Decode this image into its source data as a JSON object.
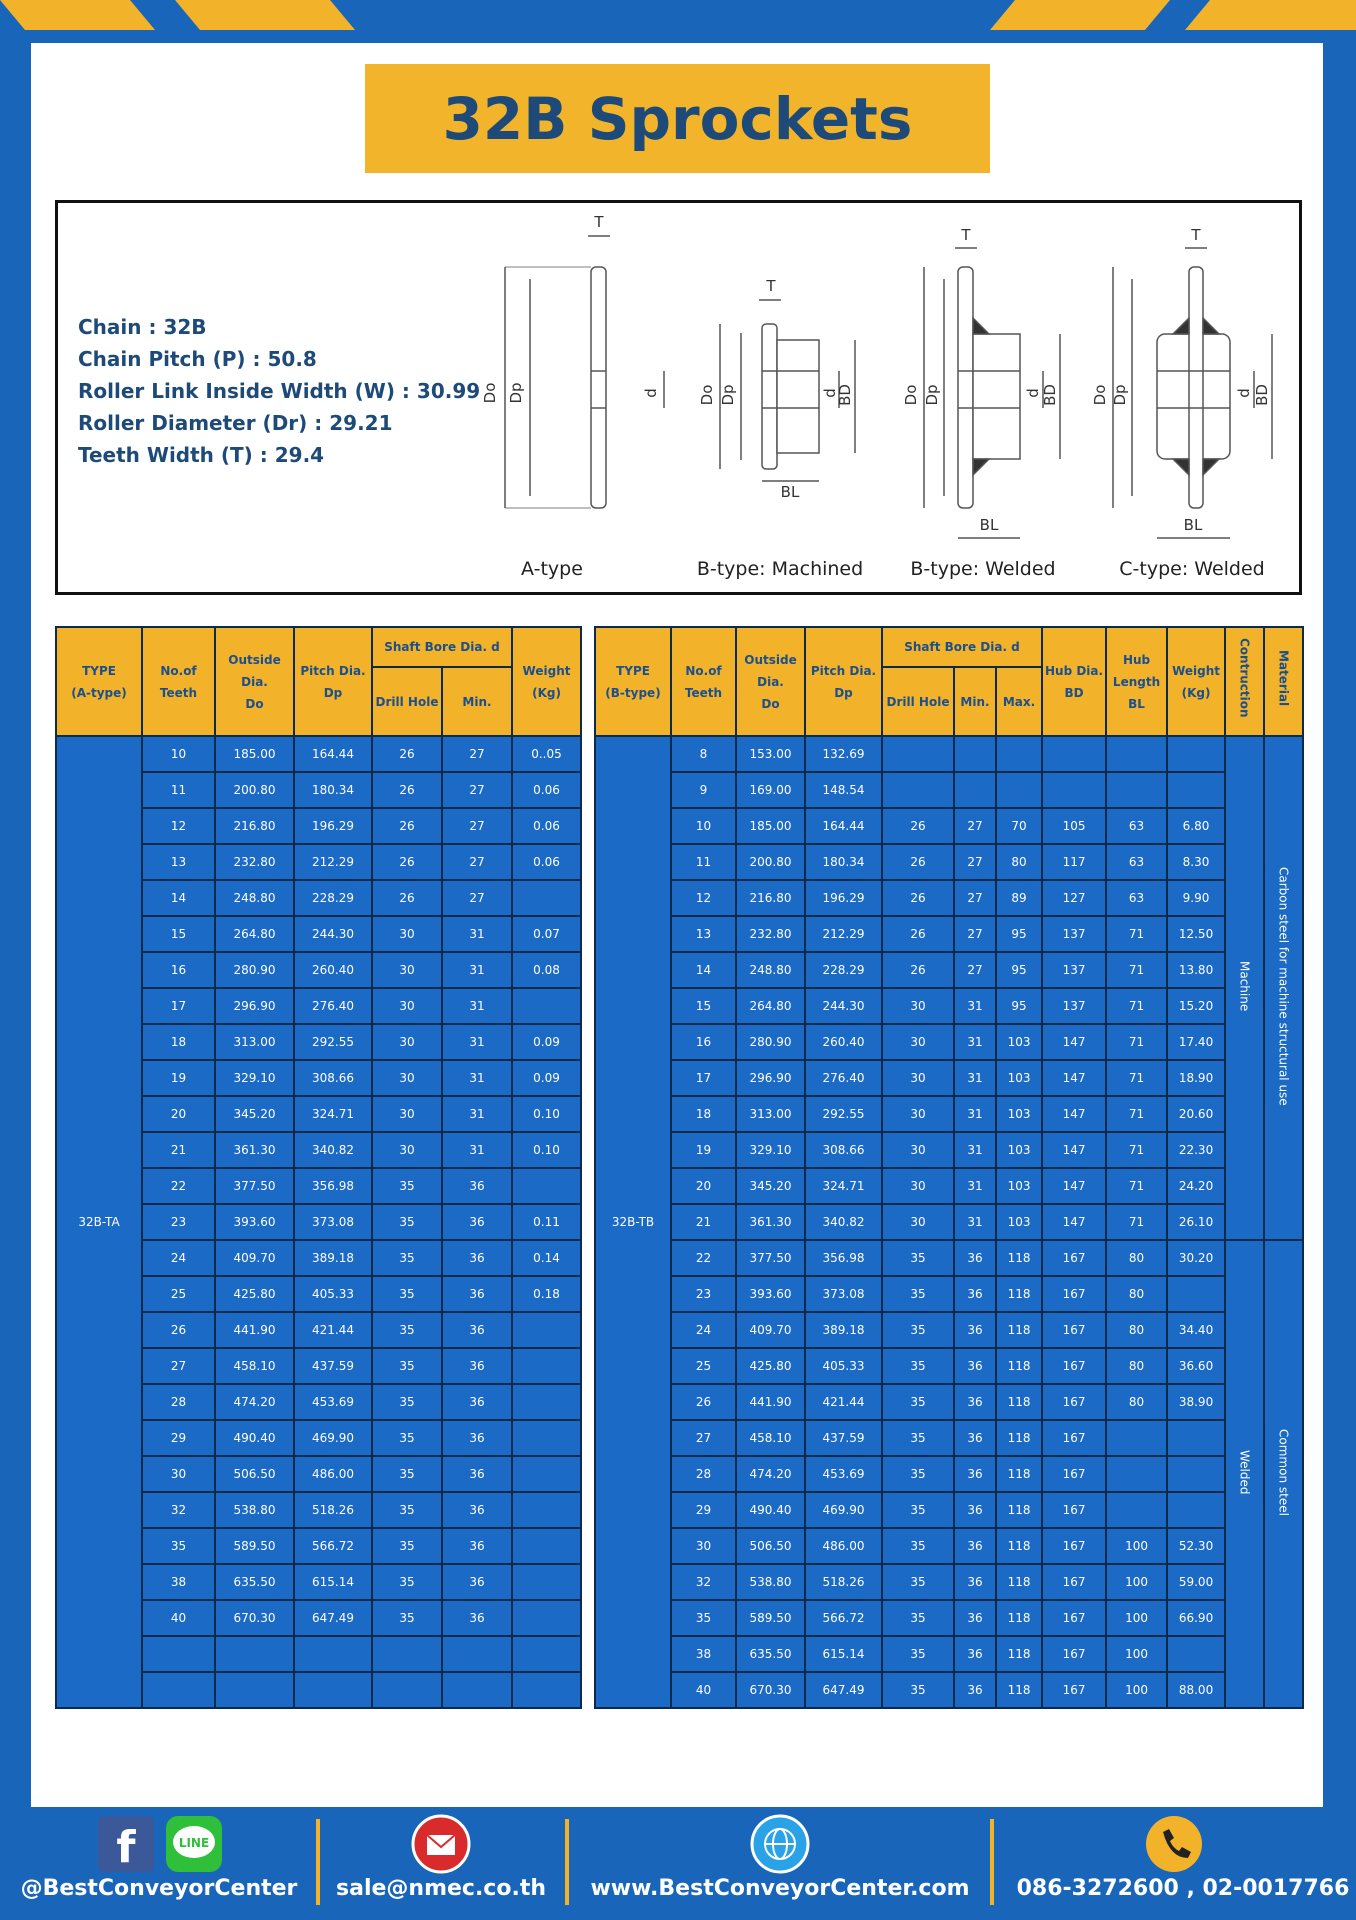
{
  "header": {
    "title": "32B Sprockets"
  },
  "specs": [
    {
      "label": "Chain",
      "value": "32B"
    },
    {
      "label": "Chain Pitch (P)",
      "value": "50.8"
    },
    {
      "label": "Roller Link Inside Width (W)",
      "value": "30.99"
    },
    {
      "label": "Roller Diameter (Dr)",
      "value": "29.21"
    },
    {
      "label": "Teeth Width (T)",
      "value": "29.4"
    }
  ],
  "diagram": {
    "labels": {
      "t": "T",
      "do": "Do",
      "dp": "Dp",
      "d": "d",
      "bd": "BD",
      "bl": "BL"
    },
    "captions": [
      "A-type",
      "B-type: Machined",
      "B-type: Welded",
      "C-type: Welded"
    ]
  },
  "table_a": {
    "headers": [
      {
        "lines": [
          "TYPE",
          "(A-type)"
        ]
      },
      {
        "lines": [
          "No.of",
          "Teeth"
        ]
      },
      {
        "lines": [
          "Outside",
          "Dia.",
          "Do"
        ]
      },
      {
        "lines": [
          "Pitch Dia.",
          "Dp"
        ]
      },
      {
        "lines": [
          "Shaft Bore Dia. d"
        ],
        "sub": [
          "Drill Hole",
          "Min."
        ]
      },
      {
        "lines": [
          "Weight",
          "(Kg)"
        ]
      }
    ],
    "type": "32B-TA",
    "rows": [
      [
        10,
        "185.00",
        "164.44",
        26,
        27,
        "0..05"
      ],
      [
        11,
        "200.80",
        "180.34",
        26,
        27,
        "0.06"
      ],
      [
        12,
        "216.80",
        "196.29",
        26,
        27,
        "0.06"
      ],
      [
        13,
        "232.80",
        "212.29",
        26,
        27,
        "0.06"
      ],
      [
        14,
        "248.80",
        "228.29",
        26,
        27,
        null
      ],
      [
        15,
        "264.80",
        "244.30",
        30,
        31,
        "0.07"
      ],
      [
        16,
        "280.90",
        "260.40",
        30,
        31,
        "0.08"
      ],
      [
        17,
        "296.90",
        "276.40",
        30,
        31,
        null
      ],
      [
        18,
        "313.00",
        "292.55",
        30,
        31,
        "0.09"
      ],
      [
        19,
        "329.10",
        "308.66",
        30,
        31,
        "0.09"
      ],
      [
        20,
        "345.20",
        "324.71",
        30,
        31,
        "0.10"
      ],
      [
        21,
        "361.30",
        "340.82",
        30,
        31,
        "0.10"
      ],
      [
        22,
        "377.50",
        "356.98",
        35,
        36,
        null
      ],
      [
        23,
        "393.60",
        "373.08",
        35,
        36,
        "0.11"
      ],
      [
        24,
        "409.70",
        "389.18",
        35,
        36,
        "0.14"
      ],
      [
        25,
        "425.80",
        "405.33",
        35,
        36,
        "0.18"
      ],
      [
        26,
        "441.90",
        "421.44",
        35,
        36,
        null
      ],
      [
        27,
        "458.10",
        "437.59",
        35,
        36,
        null
      ],
      [
        28,
        "474.20",
        "453.69",
        35,
        36,
        null
      ],
      [
        29,
        "490.40",
        "469.90",
        35,
        36,
        null
      ],
      [
        30,
        "506.50",
        "486.00",
        35,
        36,
        null
      ],
      [
        32,
        "538.80",
        "518.26",
        35,
        36,
        null
      ],
      [
        35,
        "589.50",
        "566.72",
        35,
        36,
        null
      ],
      [
        38,
        "635.50",
        "615.14",
        35,
        36,
        null
      ],
      [
        40,
        "670.30",
        "647.49",
        35,
        36,
        null
      ],
      [
        null,
        null,
        null,
        null,
        null,
        null
      ],
      [
        null,
        null,
        null,
        null,
        null,
        null
      ]
    ]
  },
  "table_b": {
    "headers": [
      {
        "lines": [
          "TYPE",
          "(B-type)"
        ]
      },
      {
        "lines": [
          "No.of",
          "Teeth"
        ]
      },
      {
        "lines": [
          "Outside",
          "Dia.",
          "Do"
        ]
      },
      {
        "lines": [
          "Pitch Dia.",
          "Dp"
        ]
      },
      {
        "lines": [
          "Shaft Bore Dia. d"
        ],
        "sub": [
          "Drill Hole",
          "Min.",
          "Max."
        ]
      },
      {
        "lines": [
          "Hub Dia.",
          "BD"
        ]
      },
      {
        "lines": [
          "Hub",
          "Length",
          "BL"
        ]
      },
      {
        "lines": [
          "Weight",
          "(Kg)"
        ]
      }
    ],
    "vertical_headers": [
      "Contruction",
      "Material"
    ],
    "type": "32B-TB",
    "rows": [
      [
        8,
        "153.00",
        "132.69",
        null,
        null,
        null,
        null,
        null,
        null
      ],
      [
        9,
        "169.00",
        "148.54",
        null,
        null,
        null,
        null,
        null,
        null
      ],
      [
        10,
        "185.00",
        "164.44",
        26,
        27,
        70,
        105,
        63,
        "6.80"
      ],
      [
        11,
        "200.80",
        "180.34",
        26,
        27,
        80,
        117,
        63,
        "8.30"
      ],
      [
        12,
        "216.80",
        "196.29",
        26,
        27,
        89,
        127,
        63,
        "9.90"
      ],
      [
        13,
        "232.80",
        "212.29",
        26,
        27,
        95,
        137,
        71,
        "12.50"
      ],
      [
        14,
        "248.80",
        "228.29",
        26,
        27,
        95,
        137,
        71,
        "13.80"
      ],
      [
        15,
        "264.80",
        "244.30",
        30,
        31,
        95,
        137,
        71,
        "15.20"
      ],
      [
        16,
        "280.90",
        "260.40",
        30,
        31,
        103,
        147,
        71,
        "17.40"
      ],
      [
        17,
        "296.90",
        "276.40",
        30,
        31,
        103,
        147,
        71,
        "18.90"
      ],
      [
        18,
        "313.00",
        "292.55",
        30,
        31,
        103,
        147,
        71,
        "20.60"
      ],
      [
        19,
        "329.10",
        "308.66",
        30,
        31,
        103,
        147,
        71,
        "22.30"
      ],
      [
        20,
        "345.20",
        "324.71",
        30,
        31,
        103,
        147,
        71,
        "24.20"
      ],
      [
        21,
        "361.30",
        "340.82",
        30,
        31,
        103,
        147,
        71,
        "26.10"
      ],
      [
        22,
        "377.50",
        "356.98",
        35,
        36,
        118,
        167,
        80,
        "30.20"
      ],
      [
        23,
        "393.60",
        "373.08",
        35,
        36,
        118,
        167,
        80,
        null
      ],
      [
        24,
        "409.70",
        "389.18",
        35,
        36,
        118,
        167,
        80,
        "34.40"
      ],
      [
        25,
        "425.80",
        "405.33",
        35,
        36,
        118,
        167,
        80,
        "36.60"
      ],
      [
        26,
        "441.90",
        "421.44",
        35,
        36,
        118,
        167,
        80,
        "38.90"
      ],
      [
        27,
        "458.10",
        "437.59",
        35,
        36,
        118,
        167,
        null,
        null
      ],
      [
        28,
        "474.20",
        "453.69",
        35,
        36,
        118,
        167,
        null,
        null
      ],
      [
        29,
        "490.40",
        "469.90",
        35,
        36,
        118,
        167,
        null,
        null
      ],
      [
        30,
        "506.50",
        "486.00",
        35,
        36,
        118,
        167,
        100,
        "52.30"
      ],
      [
        32,
        "538.80",
        "518.26",
        35,
        36,
        118,
        167,
        100,
        "59.00"
      ],
      [
        35,
        "589.50",
        "566.72",
        35,
        36,
        118,
        167,
        100,
        "66.90"
      ],
      [
        38,
        "635.50",
        "615.14",
        35,
        36,
        118,
        167,
        100,
        null
      ],
      [
        40,
        "670.30",
        "647.49",
        35,
        36,
        118,
        167,
        100,
        "88.00"
      ]
    ],
    "construction": [
      {
        "text": "Machine",
        "rows": 14
      },
      {
        "text": "Welded",
        "rows": 13
      }
    ],
    "material": [
      {
        "text": "Carbon steel for machine structural use",
        "rows": 14
      },
      {
        "text": "Common steel",
        "rows": 13
      }
    ]
  },
  "footer": {
    "facebook_icon": "f",
    "line_icon": "LINE",
    "social": "@BestConveyorCenter",
    "email": "sale@nmec.co.th",
    "website": "www.BestConveyorCenter.com",
    "phone": "086-3272600 , 02-0017766"
  }
}
